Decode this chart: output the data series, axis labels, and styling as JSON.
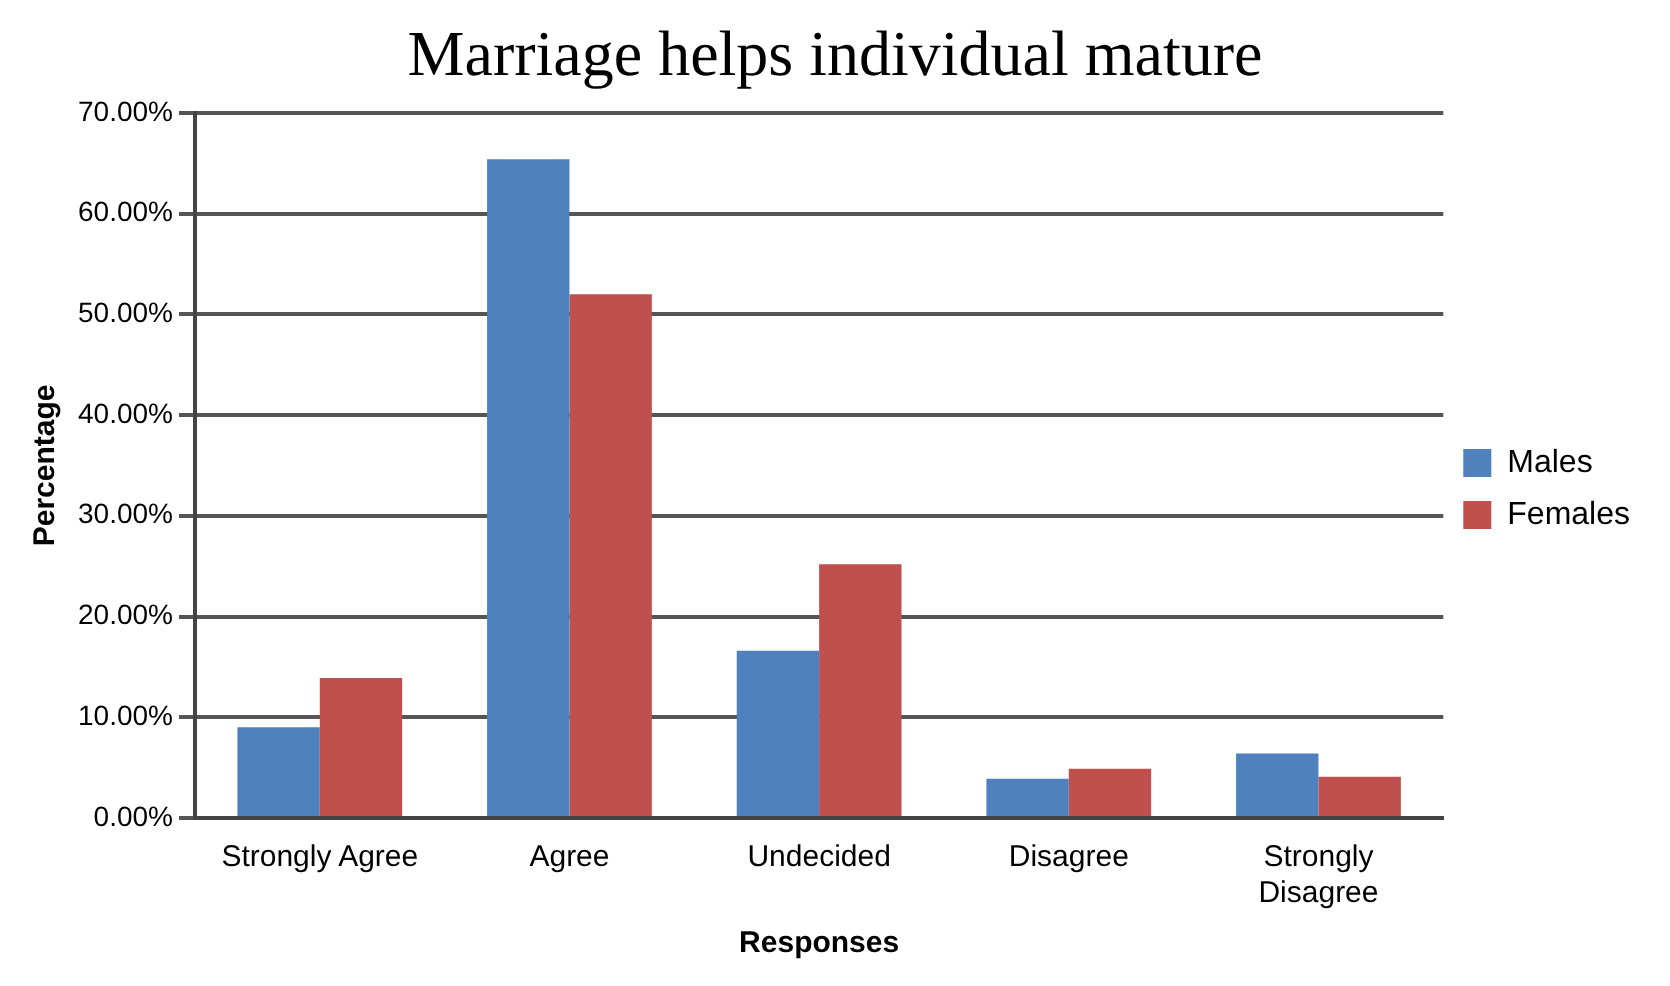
{
  "chart_data": {
    "type": "bar",
    "title": "Marriage helps individual mature",
    "xlabel": "Responses",
    "ylabel": "Percentage",
    "categories": [
      "Strongly Agree",
      "Agree",
      "Undecided",
      "Disagree",
      "Strongly Disagree"
    ],
    "series": [
      {
        "name": "Males",
        "color": "#4f81bd",
        "values": [
          9.0,
          65.4,
          16.6,
          3.9,
          6.4
        ]
      },
      {
        "name": "Females",
        "color": "#c0504d",
        "values": [
          13.9,
          52.0,
          25.2,
          4.9,
          4.1
        ]
      }
    ],
    "ylim": [
      0,
      70
    ],
    "yticks": [
      {
        "value": 0,
        "label": "0.00%"
      },
      {
        "value": 10,
        "label": "10.00%"
      },
      {
        "value": 20,
        "label": "20.00%"
      },
      {
        "value": 30,
        "label": "30.00%"
      },
      {
        "value": 40,
        "label": "40.00%"
      },
      {
        "value": 50,
        "label": "50.00%"
      },
      {
        "value": 60,
        "label": "60.00%"
      },
      {
        "value": 70,
        "label": "70.00%"
      }
    ],
    "grid": "y",
    "legend": "right"
  }
}
